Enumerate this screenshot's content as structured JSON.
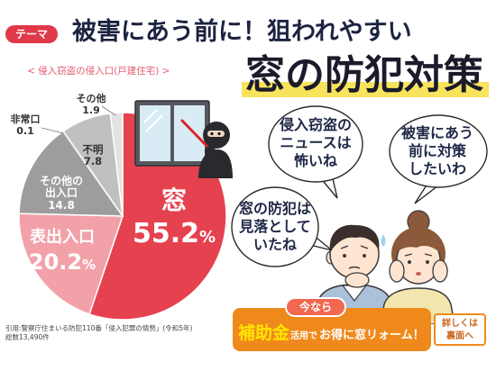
{
  "colors": {
    "badge": "#e0394a",
    "title": "#1c2340",
    "highlight": "#f8e35c",
    "subtitle": "#e35c72",
    "banner": "#f0891c",
    "banner_tab": "#f2674f",
    "subsidy": "#ffe600",
    "details": "#c8661c",
    "bubble_text": "#1e2746"
  },
  "header": {
    "badge": "テーマ",
    "title_line1": "被害にあう前に！狙われやすい",
    "title_line2": "窓の防犯対策"
  },
  "chart_data": {
    "type": "pie",
    "title": "< 侵入窃盗の侵入口(戸建住宅) >",
    "slices": [
      {
        "label": "窓",
        "value": 55.2,
        "unit": "%",
        "color": "#e6414f"
      },
      {
        "label": "表出入口",
        "value": 20.2,
        "unit": "%",
        "color": "#f2a1a9"
      },
      {
        "label": "その他の出入口",
        "value": 14.8,
        "color": "#9d9d9d"
      },
      {
        "label": "非常口",
        "value": 0.1,
        "color": "#7d7d7d"
      },
      {
        "label": "不明",
        "value": 7.8,
        "color": "#c0c0c0"
      },
      {
        "label": "その他",
        "value": 1.9,
        "color": "#e3e3e3"
      }
    ]
  },
  "speech_bubbles": [
    {
      "lines": [
        "侵入窃盗の",
        "ニュースは",
        "怖いね"
      ]
    },
    {
      "lines": [
        "被害にあう",
        "前に対策",
        "したいわ"
      ]
    },
    {
      "lines": [
        "窓の防犯は",
        "見落として",
        "いたね"
      ]
    }
  ],
  "banner": {
    "tab": "今なら",
    "subsidy": "補助金",
    "use": "活用で",
    "deal": "お得に窓リォーム！",
    "details_line1": "詳しくは",
    "details_line2": "裏面へ"
  },
  "footer": {
    "source": "引用:警察庁住まいる防犯110番「侵入犯罪の情勢」(令和5年)",
    "total": "総数13,490件"
  }
}
